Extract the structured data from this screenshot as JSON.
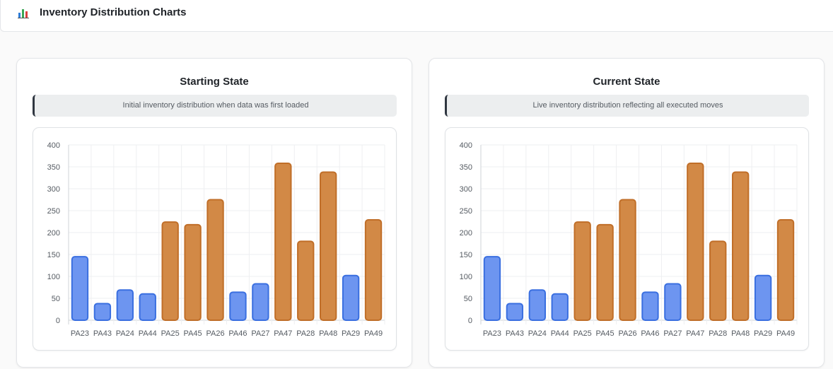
{
  "header": {
    "title": "Inventory Distribution Charts",
    "icon": "bar-chart-icon"
  },
  "colors": {
    "blue_fill": "#6d95f0",
    "blue_stroke": "#3a6fe0",
    "orange_fill": "#d28946",
    "orange_stroke": "#c06e28"
  },
  "panels": [
    {
      "title": "Starting State",
      "description": "Initial inventory distribution when data was first loaded"
    },
    {
      "title": "Current State",
      "description": "Live inventory distribution reflecting all executed moves"
    }
  ],
  "chart_data": [
    {
      "type": "bar",
      "title": "Starting State",
      "categories": [
        "PA23",
        "PA43",
        "PA24",
        "PA44",
        "PA25",
        "PA45",
        "PA26",
        "PA46",
        "PA27",
        "PA47",
        "PA28",
        "PA48",
        "PA29",
        "PA49"
      ],
      "values": [
        145,
        38,
        69,
        60,
        224,
        218,
        275,
        64,
        83,
        358,
        180,
        338,
        102,
        229
      ],
      "groups": [
        "blue",
        "blue",
        "blue",
        "blue",
        "orange",
        "orange",
        "orange",
        "blue",
        "blue",
        "orange",
        "orange",
        "orange",
        "blue",
        "orange"
      ],
      "yticks": [
        "0",
        "50",
        "100",
        "150",
        "200",
        "250",
        "300",
        "350",
        "400"
      ],
      "ylim": [
        0,
        400
      ],
      "xlabel": "",
      "ylabel": "",
      "grid": true
    },
    {
      "type": "bar",
      "title": "Current State",
      "categories": [
        "PA23",
        "PA43",
        "PA24",
        "PA44",
        "PA25",
        "PA45",
        "PA26",
        "PA46",
        "PA27",
        "PA47",
        "PA28",
        "PA48",
        "PA29",
        "PA49"
      ],
      "values": [
        145,
        38,
        69,
        60,
        224,
        218,
        275,
        64,
        83,
        358,
        180,
        338,
        102,
        229
      ],
      "groups": [
        "blue",
        "blue",
        "blue",
        "blue",
        "orange",
        "orange",
        "orange",
        "blue",
        "blue",
        "orange",
        "orange",
        "orange",
        "blue",
        "orange"
      ],
      "yticks": [
        "0",
        "50",
        "100",
        "150",
        "200",
        "250",
        "300",
        "350",
        "400"
      ],
      "ylim": [
        0,
        400
      ],
      "xlabel": "",
      "ylabel": "",
      "grid": true
    }
  ]
}
